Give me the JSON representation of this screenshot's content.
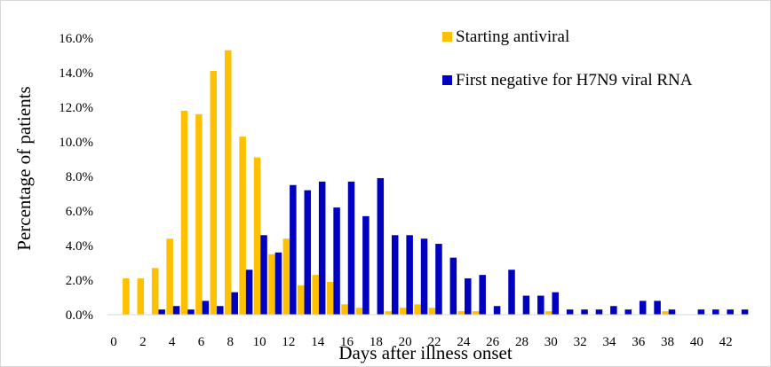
{
  "chart_data": {
    "type": "bar",
    "title": "",
    "xlabel": "Days after illness onset",
    "ylabel": "Percentage of patients",
    "ylim": [
      0,
      16
    ],
    "y_ticks": [
      "0.0%",
      "2.0%",
      "4.0%",
      "6.0%",
      "8.0%",
      "10.0%",
      "12.0%",
      "14.0%",
      "16.0%"
    ],
    "x_ticks": [
      "0",
      "2",
      "4",
      "6",
      "8",
      "10",
      "12",
      "14",
      "16",
      "18",
      "20",
      "22",
      "24",
      "26",
      "28",
      "30",
      "32",
      "34",
      "36",
      "38",
      "40",
      "42"
    ],
    "categories": [
      0,
      1,
      2,
      3,
      4,
      5,
      6,
      7,
      8,
      9,
      10,
      11,
      12,
      13,
      14,
      15,
      16,
      17,
      18,
      19,
      20,
      21,
      22,
      23,
      24,
      25,
      26,
      27,
      28,
      29,
      30,
      31,
      32,
      33,
      34,
      35,
      36,
      37,
      38,
      39,
      40,
      41,
      42,
      43
    ],
    "grid": false,
    "legend_position": "top-right",
    "series": [
      {
        "name": "Starting antiviral",
        "color": "#FFC000",
        "values": [
          0,
          2.1,
          2.1,
          2.7,
          4.4,
          11.8,
          11.6,
          14.1,
          15.3,
          10.3,
          9.1,
          3.5,
          4.4,
          1.7,
          2.3,
          1.9,
          0.6,
          0.4,
          0,
          0.2,
          0.4,
          0.6,
          0.4,
          0,
          0.2,
          0.2,
          0,
          0,
          0,
          0,
          0.2,
          0,
          0,
          0,
          0,
          0,
          0,
          0,
          0.2,
          0,
          0,
          0,
          0,
          0
        ]
      },
      {
        "name": "First negative for H7N9 viral RNA",
        "color": "#0000C0",
        "values": [
          0,
          0,
          0,
          0.3,
          0.5,
          0.3,
          0.8,
          0.5,
          1.3,
          2.6,
          4.6,
          3.6,
          7.5,
          7.2,
          7.7,
          6.2,
          7.7,
          5.7,
          7.9,
          4.6,
          4.6,
          4.4,
          4.1,
          3.3,
          2.1,
          2.3,
          0.5,
          2.6,
          1.1,
          1.1,
          1.3,
          0.3,
          0.3,
          0.3,
          0.5,
          0.3,
          0.8,
          0.8,
          0.3,
          0,
          0.3,
          0.3,
          0.3,
          0.3
        ]
      }
    ]
  }
}
